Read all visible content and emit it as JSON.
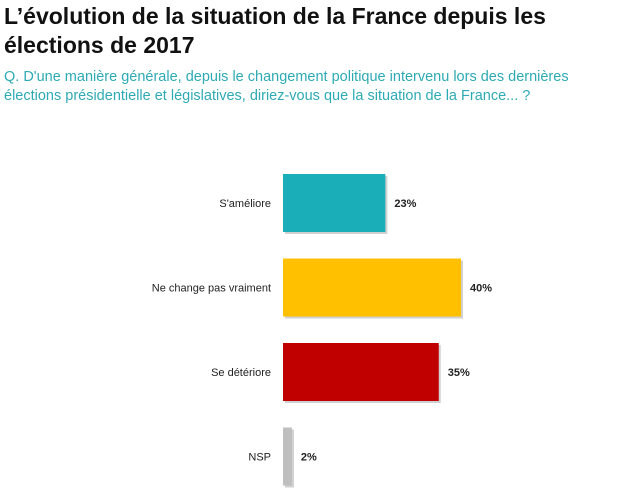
{
  "title": "L’évolution de la situation de la France depuis les élections de 2017",
  "question": "Q. D'une manière générale, depuis le changement politique intervenu lors des dernières élections présidentielle et législatives, diriez-vous que la situation de la France... ?",
  "chart_data": {
    "type": "bar",
    "orientation": "horizontal",
    "title": "L’évolution de la situation de la France depuis les élections de 2017",
    "categories": [
      "S'améliore",
      "Ne change pas vraiment",
      "Se détériore",
      "NSP"
    ],
    "values": [
      23,
      40,
      35,
      2
    ],
    "value_labels": [
      "23%",
      "40%",
      "35%",
      "2%"
    ],
    "colors": [
      "#1aaeb8",
      "#ffc000",
      "#c00000",
      "#bfbfbf"
    ],
    "xlim": [
      0,
      100
    ],
    "xlabel": "",
    "ylabel": "",
    "grid": false
  }
}
